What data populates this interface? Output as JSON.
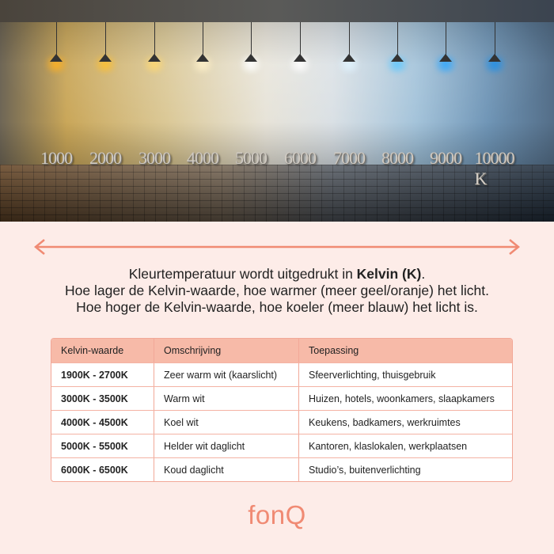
{
  "photo": {
    "scale_labels": [
      "1000",
      "2000",
      "3000",
      "4000",
      "5000",
      "6000",
      "7000",
      "8000",
      "9000",
      "10000 K"
    ],
    "lamp_colors": [
      "#ffb020",
      "#ffc030",
      "#ffd870",
      "#fff0c8",
      "#ffffff",
      "#ffffff",
      "#e0f4ff",
      "#60c8ff",
      "#30a8ff",
      "#2090e8"
    ]
  },
  "accent": "#f08a73",
  "intro": {
    "line1_prefix": "Kleurtemperatuur wordt uitgedrukt in ",
    "line1_bold": "Kelvin (K)",
    "line1_suffix": ".",
    "line2": "Hoe lager de Kelvin-waarde, hoe warmer (meer geel/oranje) het licht.",
    "line3": "Hoe hoger de Kelvin-waarde, hoe koeler (meer blauw) het licht is."
  },
  "table": {
    "headers": [
      "Kelvin-waarde",
      "Omschrijving",
      "Toepassing"
    ],
    "rows": [
      [
        "1900K - 2700K",
        "Zeer warm wit (kaarslicht)",
        "Sfeerverlichting, thuisgebruik"
      ],
      [
        "3000K - 3500K",
        "Warm wit",
        "Huizen, hotels, woonkamers, slaapkamers"
      ],
      [
        "4000K - 4500K",
        "Koel wit",
        "Keukens, badkamers, werkruimtes"
      ],
      [
        "5000K - 5500K",
        "Helder wit daglicht",
        "Kantoren, klaslokalen, werkplaatsen"
      ],
      [
        "6000K - 6500K",
        "Koud daglicht",
        "Studio’s, buitenverlichting"
      ]
    ]
  },
  "logo": "fonQ"
}
